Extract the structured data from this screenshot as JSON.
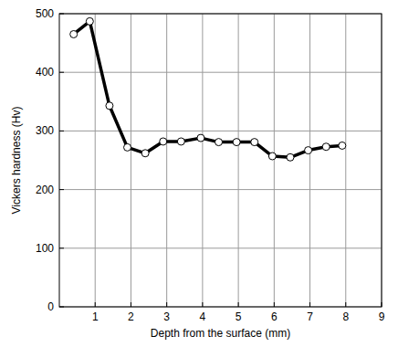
{
  "chart_data": {
    "type": "line",
    "x_label": "Depth from the surface (mm)",
    "y_label": "Vickers hardness (Hv)",
    "x": [
      0.4,
      0.85,
      1.4,
      1.9,
      2.4,
      2.9,
      3.4,
      3.95,
      4.45,
      4.95,
      5.45,
      5.95,
      6.45,
      6.95,
      7.45,
      7.9
    ],
    "values": [
      465,
      487,
      343,
      272,
      262,
      282,
      282,
      288,
      281,
      281,
      281,
      257,
      255,
      267,
      273,
      275
    ],
    "color": "#000000",
    "marker": "circle",
    "xlim": [
      0,
      9
    ],
    "xticks": [
      1,
      2,
      3,
      4,
      5,
      6,
      7,
      8,
      9
    ],
    "ylim": [
      0,
      500
    ],
    "yticks": [
      0,
      100,
      200,
      300,
      400,
      500
    ],
    "grid": true
  }
}
